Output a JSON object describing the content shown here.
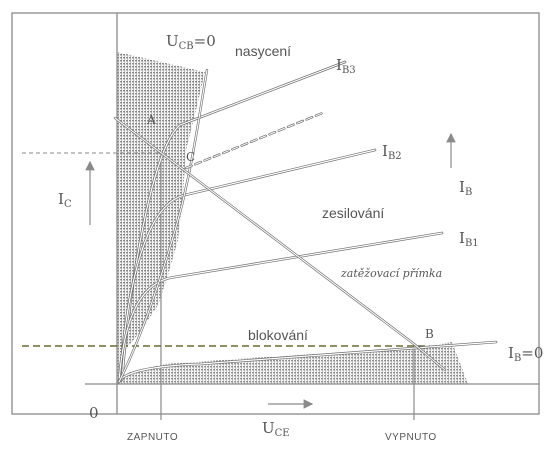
{
  "labels": {
    "uce_zero": "U",
    "uce_zero_sub": "CB",
    "uce_zero_suffix": "=0",
    "saturation": "nasycení",
    "amplification": "zesilování",
    "blocking": "blokování",
    "load_line": "zatěžovací přímka",
    "ib3": "I",
    "ib3_sub": "B3",
    "ib2": "I",
    "ib2_sub": "B2",
    "ib1": "I",
    "ib1_sub": "B1",
    "ib0": "I",
    "ib0_sub": "B",
    "ib0_suffix": "=0",
    "ib_arrow": "I",
    "ib_arrow_sub": "B",
    "ic": "I",
    "ic_sub": "C",
    "uce": "U",
    "uce_sub": "CE",
    "origin": "0",
    "point_a": "A",
    "point_b": "B",
    "point_c": "C",
    "on": "ZAPNUTO",
    "off": "VYPNUTO"
  },
  "colors": {
    "frame": "#8a8a8a",
    "curve": "#ffffff",
    "curve_shadow": "#6e6e6e",
    "shade": "#9a9a9a",
    "dashed_line": "#6b6b2e",
    "text": "#555555"
  }
}
